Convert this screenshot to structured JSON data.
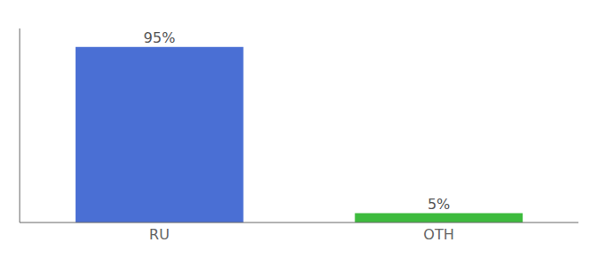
{
  "chart_data": {
    "type": "bar",
    "categories": [
      "RU",
      "OTH"
    ],
    "values": [
      95,
      5
    ],
    "value_labels": [
      "95%",
      "5%"
    ],
    "colors": [
      "#4a6fd4",
      "#3dbb3d"
    ],
    "ylim": [
      0,
      105
    ],
    "yticks": [],
    "data_labels": true,
    "tick_labels": "x",
    "grid": false
  }
}
